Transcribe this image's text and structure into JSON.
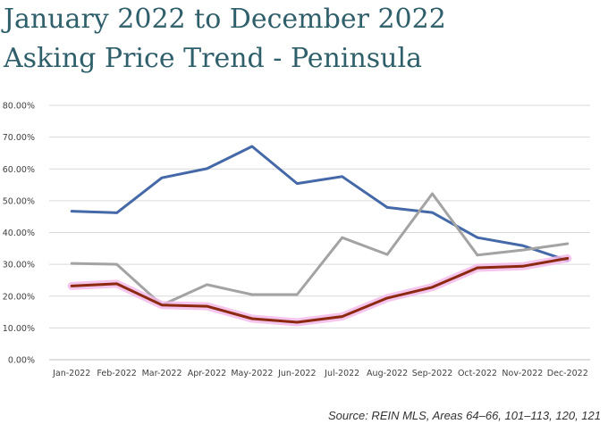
{
  "title_lines": [
    "January 2022 to December 2022",
    "Asking Price Trend - Peninsula"
  ],
  "source": "Source: REIN MLS, Areas 64–66, 101–113, 120, 121",
  "chart_data": {
    "type": "line",
    "categories": [
      "Jan-2022",
      "Feb-2022",
      "Mar-2022",
      "Apr-2022",
      "May-2022",
      "Jun-2022",
      "Jul-2022",
      "Aug-2022",
      "Sep-2022",
      "Oct-2022",
      "Nov-2022",
      "Dec-2022"
    ],
    "y_ticks": [
      "0.00%",
      "10.00%",
      "20.00%",
      "30.00%",
      "40.00%",
      "50.00%",
      "60.00%",
      "70.00%",
      "80.00%"
    ],
    "ylim": [
      0,
      80
    ],
    "grid": true,
    "legend": "none",
    "series": [
      {
        "color": "#4468a8",
        "values": [
          46.7,
          46.2,
          57.2,
          60.1,
          67.1,
          55.4,
          57.6,
          47.9,
          46.3,
          38.4,
          35.9,
          31.2
        ]
      },
      {
        "color": "#a3a3a3",
        "values": [
          30.3,
          30.0,
          17.2,
          23.6,
          20.5,
          20.5,
          38.4,
          33.1,
          52.2,
          32.9,
          34.5,
          36.5
        ]
      },
      {
        "color": "#8b2a10",
        "glow": "#f3b6e8",
        "values": [
          23.2,
          23.9,
          17.2,
          16.8,
          12.9,
          11.8,
          13.6,
          19.4,
          22.8,
          28.9,
          29.4,
          31.9
        ]
      }
    ]
  }
}
